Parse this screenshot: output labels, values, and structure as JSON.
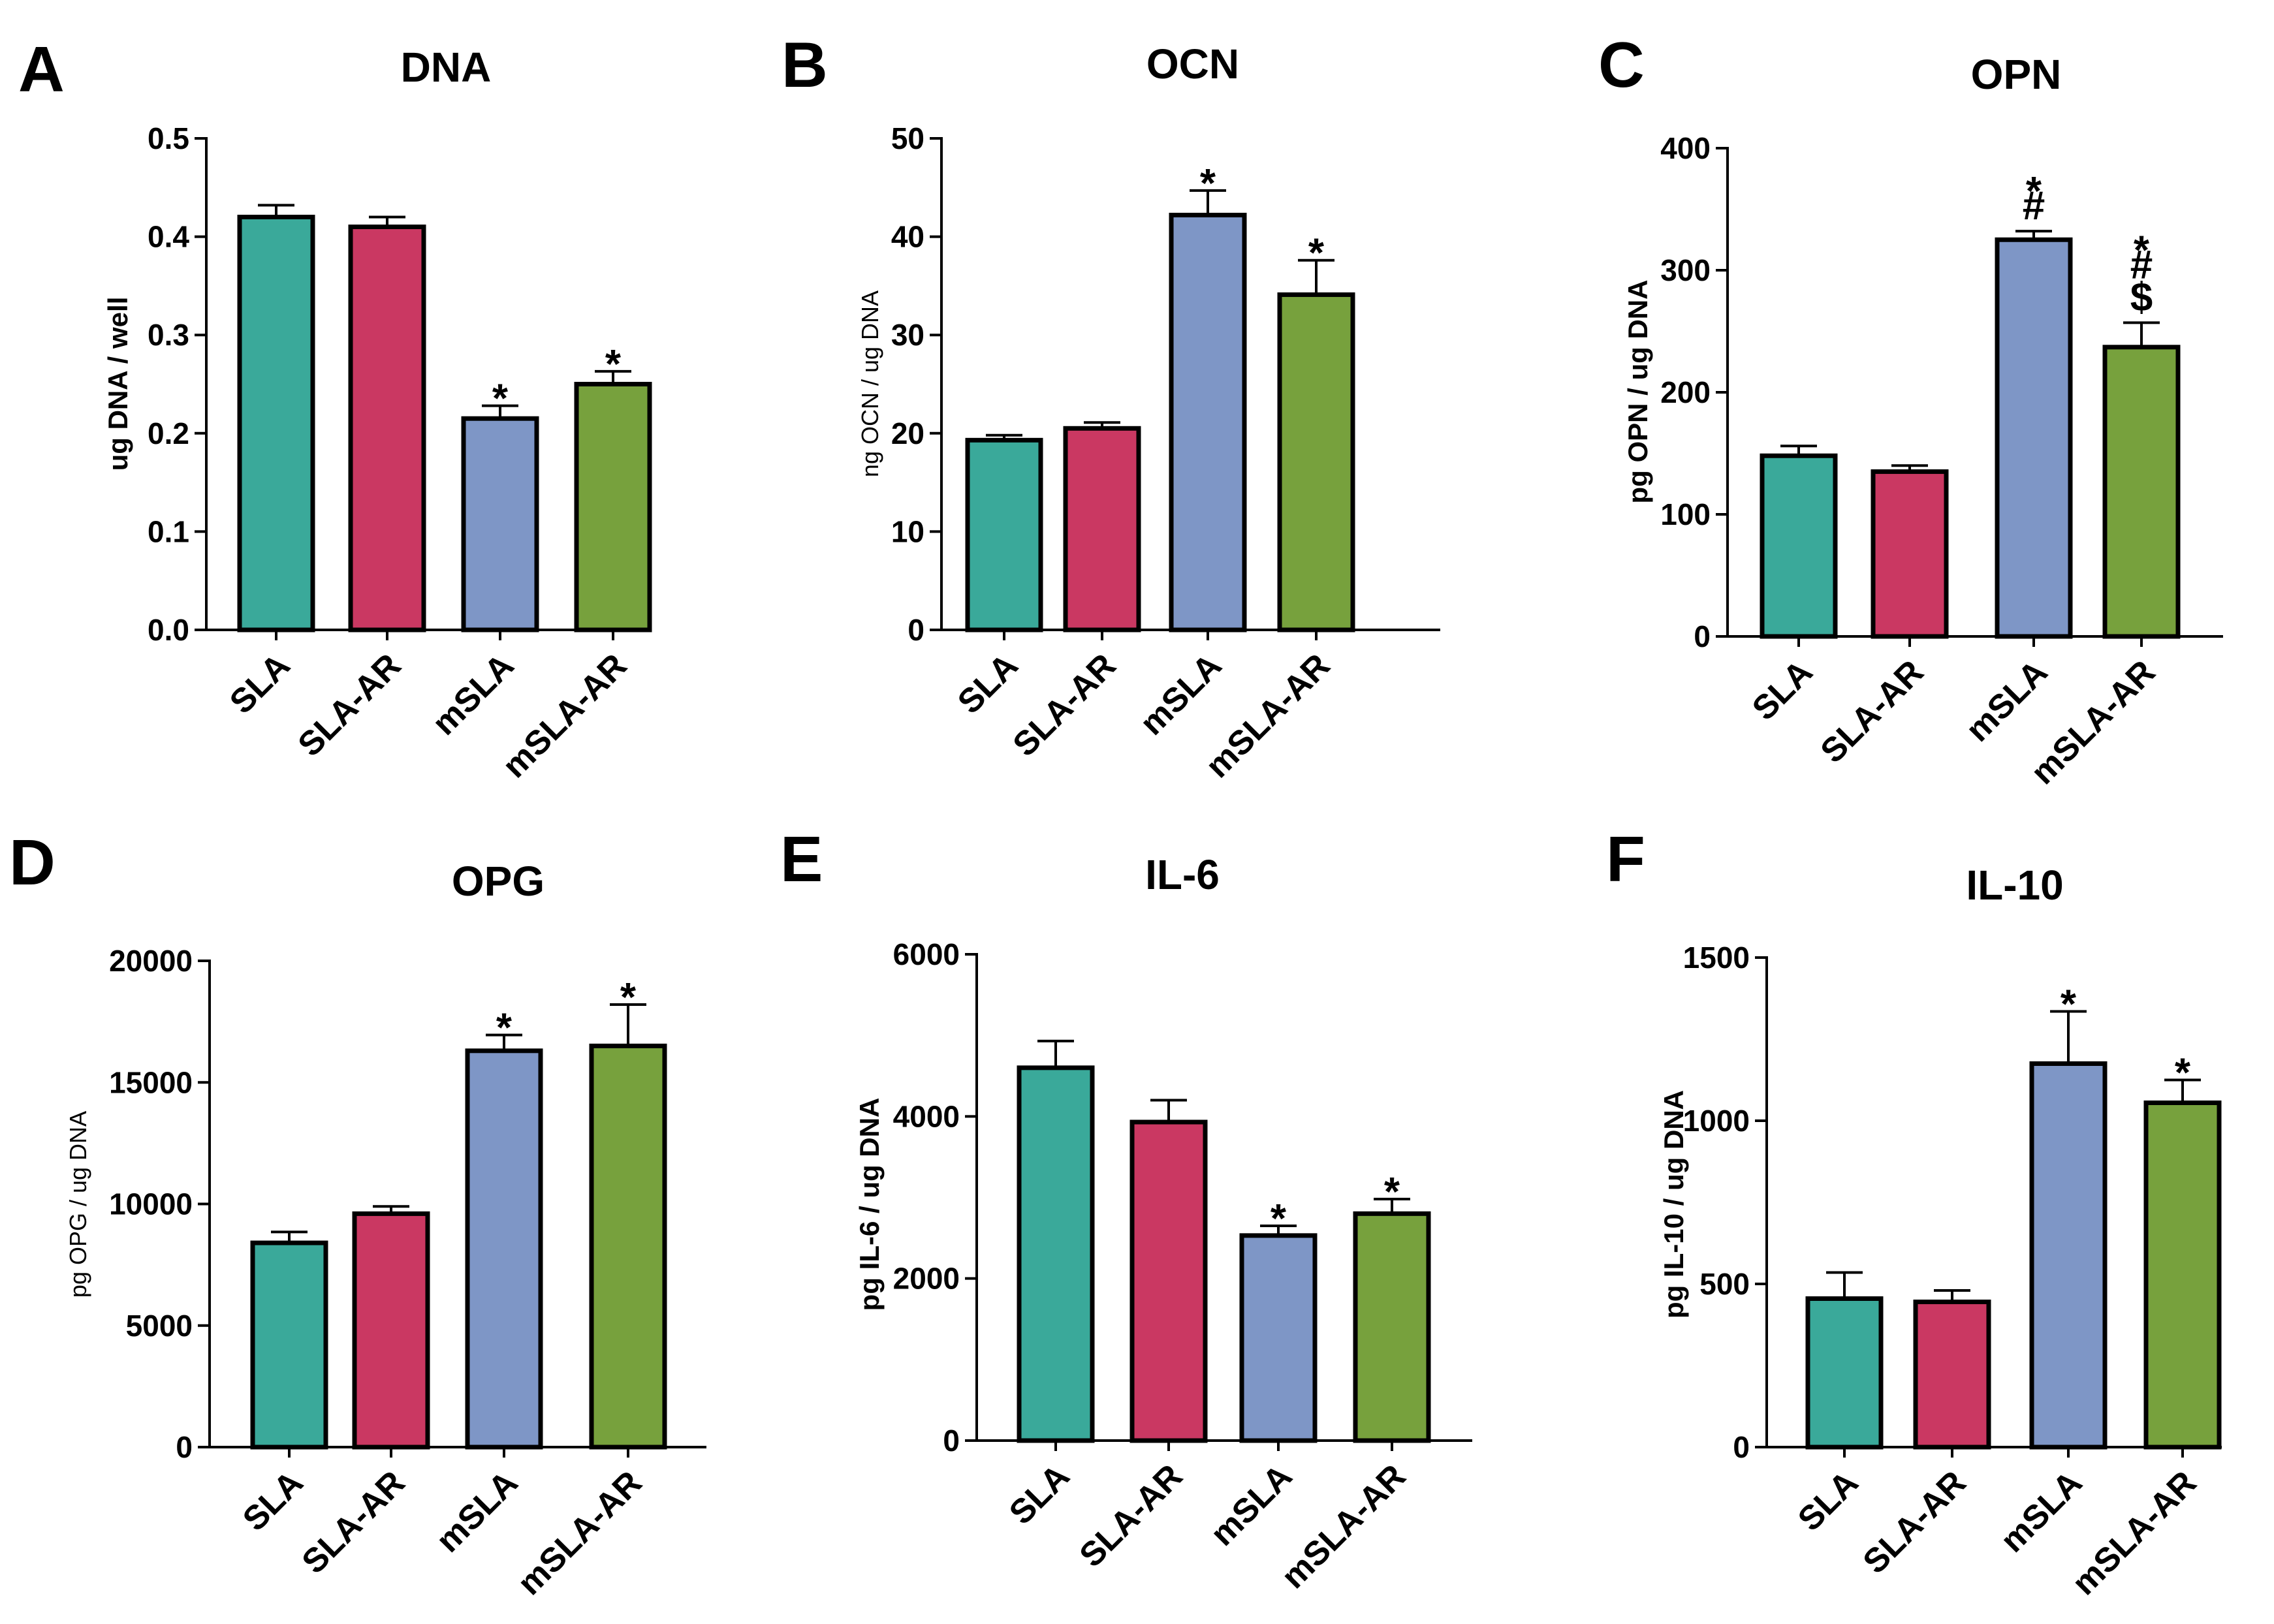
{
  "colors": {
    "SLA": "#3aa99a",
    "SLA-AR": "#ca3862",
    "mSLA": "#7e96c6",
    "mSLA-AR": "#77a13d"
  },
  "chart_data": [
    {
      "panel": "A",
      "title": "DNA",
      "type": "bar",
      "ylabel": "ug DNA / well",
      "ylabel_weight": "bold",
      "categories": [
        "SLA",
        "SLA-AR",
        "mSLA",
        "mSLA-AR"
      ],
      "values": [
        0.42,
        0.41,
        0.215,
        0.25
      ],
      "errors": [
        0.012,
        0.01,
        0.013,
        0.013
      ],
      "ylim": [
        0,
        0.5
      ],
      "yticks": [
        0,
        0.1,
        0.2,
        0.3,
        0.4,
        0.5
      ],
      "ytick_labels": [
        "0.0",
        "0.1",
        "0.2",
        "0.3",
        "0.4",
        "0.5"
      ],
      "annotations": [
        [],
        [],
        [
          "*"
        ],
        [
          "*"
        ]
      ]
    },
    {
      "panel": "B",
      "title": "OCN",
      "type": "bar",
      "ylabel": "ng OCN / ug DNA",
      "ylabel_weight": "normal",
      "categories": [
        "SLA",
        "SLA-AR",
        "mSLA",
        "mSLA-AR"
      ],
      "values": [
        19.3,
        20.5,
        42.2,
        34.1
      ],
      "errors": [
        0.5,
        0.6,
        2.5,
        3.5
      ],
      "ylim": [
        0,
        50
      ],
      "yticks": [
        0,
        10,
        20,
        30,
        40,
        50
      ],
      "ytick_labels": [
        "0",
        "10",
        "20",
        "30",
        "40",
        "50"
      ],
      "annotations": [
        [],
        [],
        [
          "*"
        ],
        [
          "*"
        ]
      ]
    },
    {
      "panel": "C",
      "title": "OPN",
      "type": "bar",
      "ylabel": "pg OPN / ug DNA",
      "ylabel_weight": "bold",
      "categories": [
        "SLA",
        "SLA-AR",
        "mSLA",
        "mSLA-AR"
      ],
      "values": [
        148,
        135,
        325,
        237
      ],
      "errors": [
        8,
        5,
        7,
        20
      ],
      "ylim": [
        0,
        400
      ],
      "yticks": [
        0,
        100,
        200,
        300,
        400
      ],
      "ytick_labels": [
        "0",
        "100",
        "200",
        "300",
        "400"
      ],
      "annotations": [
        [],
        [],
        [
          "#",
          "*"
        ],
        [
          "$",
          "#",
          "*"
        ]
      ]
    },
    {
      "panel": "D",
      "title": "OPG",
      "type": "bar",
      "ylabel": "pg OPG / ug DNA",
      "ylabel_weight": "normal",
      "categories": [
        "SLA",
        "SLA-AR",
        "mSLA",
        "mSLA-AR"
      ],
      "values": [
        8400,
        9600,
        16300,
        16500
      ],
      "errors": [
        450,
        300,
        650,
        1700
      ],
      "ylim": [
        0,
        20000
      ],
      "yticks": [
        0,
        5000,
        10000,
        15000,
        20000
      ],
      "ytick_labels": [
        "0",
        "5000",
        "10000",
        "15000",
        "20000"
      ],
      "annotations": [
        [],
        [],
        [
          "*"
        ],
        [
          "*"
        ]
      ]
    },
    {
      "panel": "E",
      "title": "IL-6",
      "type": "bar",
      "ylabel": "pg IL-6 / ug DNA",
      "ylabel_weight": "bold",
      "categories": [
        "SLA",
        "SLA-AR",
        "mSLA",
        "mSLA-AR"
      ],
      "values": [
        4600,
        3930,
        2530,
        2800
      ],
      "errors": [
        330,
        270,
        120,
        180
      ],
      "ylim": [
        0,
        6000
      ],
      "yticks": [
        0,
        2000,
        4000,
        6000
      ],
      "ytick_labels": [
        "0",
        "2000",
        "4000",
        "6000"
      ],
      "annotations": [
        [],
        [],
        [
          "*"
        ],
        [
          "*"
        ]
      ]
    },
    {
      "panel": "F",
      "title": "IL-10",
      "type": "bar",
      "ylabel": "pg IL-10 / ug DNA",
      "ylabel_weight": "bold",
      "categories": [
        "SLA",
        "SLA-AR",
        "mSLA",
        "mSLA-AR"
      ],
      "values": [
        455,
        445,
        1175,
        1055
      ],
      "errors": [
        80,
        35,
        160,
        70
      ],
      "ylim": [
        0,
        1500
      ],
      "yticks": [
        0,
        500,
        1000,
        1500
      ],
      "ytick_labels": [
        "0",
        "500",
        "1000",
        "1500"
      ],
      "annotations": [
        [],
        [],
        [
          "*"
        ],
        [
          "*"
        ]
      ]
    }
  ]
}
